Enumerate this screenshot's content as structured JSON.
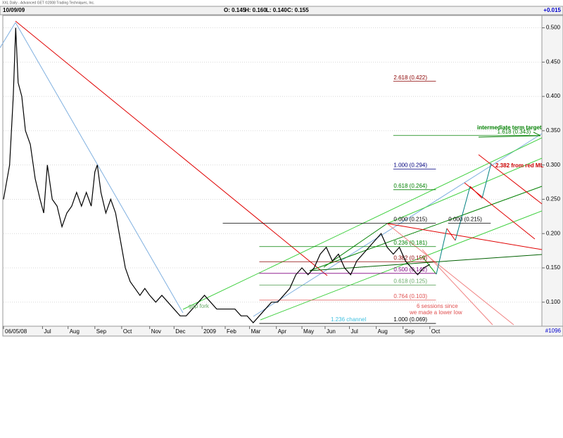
{
  "chart_data": {
    "type": "line",
    "title": "XXL Daily - Advanced GET ©2008 Trading Techniques, Inc.",
    "date": "10/09/09",
    "ohlc": [
      "O: 0.145",
      "H: 0.160",
      "L: 0.140",
      "C: 0.155"
    ],
    "change": "+0.015",
    "bar_count": "#1096",
    "color": "#000000",
    "x": [
      0,
      5,
      8,
      10,
      12,
      15,
      18,
      22,
      26,
      30,
      33,
      36,
      40,
      44,
      48,
      52,
      56,
      60,
      64,
      68,
      72,
      75,
      77,
      80,
      84,
      88,
      92,
      96,
      100,
      104,
      108,
      112,
      116,
      120,
      125,
      130,
      135,
      140,
      145,
      150,
      155,
      160,
      165,
      170,
      175,
      180,
      185,
      190,
      195,
      200,
      205,
      210,
      215,
      220,
      225,
      230,
      235,
      240,
      245,
      250,
      255,
      260,
      265,
      270,
      275,
      280,
      285,
      290,
      295,
      300,
      305,
      310,
      315,
      320,
      325,
      330,
      335,
      340,
      345,
      350
    ],
    "values": [
      0.25,
      0.3,
      0.4,
      0.5,
      0.42,
      0.4,
      0.35,
      0.33,
      0.28,
      0.25,
      0.23,
      0.3,
      0.25,
      0.24,
      0.21,
      0.23,
      0.24,
      0.26,
      0.24,
      0.26,
      0.24,
      0.29,
      0.3,
      0.26,
      0.23,
      0.25,
      0.23,
      0.19,
      0.15,
      0.13,
      0.12,
      0.11,
      0.12,
      0.11,
      0.1,
      0.11,
      0.1,
      0.09,
      0.08,
      0.08,
      0.09,
      0.1,
      0.11,
      0.1,
      0.09,
      0.09,
      0.09,
      0.09,
      0.08,
      0.08,
      0.07,
      0.08,
      0.09,
      0.1,
      0.1,
      0.11,
      0.12,
      0.14,
      0.15,
      0.14,
      0.15,
      0.17,
      0.18,
      0.16,
      0.17,
      0.15,
      0.14,
      0.16,
      0.17,
      0.18,
      0.19,
      0.2,
      0.18,
      0.17,
      0.18,
      0.16,
      0.15,
      0.14,
      0.15,
      0.155
    ],
    "xlim": [
      0,
      442
    ],
    "xticks": [
      {
        "value": 0,
        "label": "06/05/08"
      },
      {
        "value": 32,
        "label": "Jul"
      },
      {
        "value": 53,
        "label": "Aug"
      },
      {
        "value": 75,
        "label": "Sep"
      },
      {
        "value": 97,
        "label": "Oct"
      },
      {
        "value": 120,
        "label": "Nov"
      },
      {
        "value": 140,
        "label": "Dec"
      },
      {
        "value": 163,
        "label": "2009"
      },
      {
        "value": 182,
        "label": "Feb"
      },
      {
        "value": 202,
        "label": "Mar"
      },
      {
        "value": 224,
        "label": "Apr"
      },
      {
        "value": 245,
        "label": "May"
      },
      {
        "value": 264,
        "label": "Jun"
      },
      {
        "value": 284,
        "label": "Jul"
      },
      {
        "value": 306,
        "label": "Aug"
      },
      {
        "value": 328,
        "label": "Sep"
      },
      {
        "value": 350,
        "label": "Oct"
      }
    ],
    "ylim": [
      0.067,
      0.518
    ],
    "yticks": [
      {
        "value": 0.1,
        "label": "0.100"
      },
      {
        "value": 0.15,
        "label": "0.150"
      },
      {
        "value": 0.2,
        "label": "0.200"
      },
      {
        "value": 0.25,
        "label": "0.250"
      },
      {
        "value": 0.3,
        "label": "0.300"
      },
      {
        "value": 0.35,
        "label": "0.350"
      },
      {
        "value": 0.4,
        "label": "0.400"
      },
      {
        "value": 0.45,
        "label": "0.450"
      },
      {
        "value": 0.5,
        "label": "0.500"
      }
    ],
    "grid": true,
    "levels": [
      {
        "label": "2.618 (0.422)",
        "value": 0.422,
        "color": "#8b0000",
        "x": [
          320,
          355
        ]
      },
      {
        "label": "1.618 (0.343)",
        "value": 0.343,
        "color": "#008000",
        "x": [
          320,
          440
        ]
      },
      {
        "label": "1.000 (0.294)",
        "value": 0.294,
        "color": "#000080",
        "x": [
          320,
          355
        ]
      },
      {
        "label": "0.618 (0.264)",
        "value": 0.264,
        "color": "#008000",
        "x": [
          320,
          355
        ]
      },
      {
        "label": "0.000 (0.215)",
        "value": 0.215,
        "color": "#000000",
        "x": [
          180,
          355
        ]
      },
      {
        "label": "0.000 (0.215)",
        "value": 0.215,
        "color": "#000000",
        "x": [
          365,
          400
        ]
      },
      {
        "label": "0.236 (0.181)",
        "value": 0.181,
        "color": "#008000",
        "x": [
          210,
          355
        ]
      },
      {
        "label": "0.382 (0.159)",
        "value": 0.159,
        "color": "#8b0000",
        "x": [
          210,
          355
        ]
      },
      {
        "label": "0.500 (0.142)",
        "value": 0.142,
        "color": "#800080",
        "x": [
          210,
          355
        ]
      },
      {
        "label": "0.618 (0.125)",
        "value": 0.125,
        "color": "#66aa66",
        "x": [
          210,
          355
        ]
      },
      {
        "label": "0.764 (0.103)",
        "value": 0.103,
        "color": "#e05050",
        "x": [
          210,
          355
        ]
      },
      {
        "label": "1.000 (0.069)",
        "value": 0.069,
        "color": "#000000",
        "x": [
          210,
          355
        ]
      }
    ],
    "annotations": [
      "intermediate term target",
      "2.382 from red ML",
      "gap fork",
      "1.236 channel",
      "6 sessions since",
      "we made a lower low"
    ]
  }
}
